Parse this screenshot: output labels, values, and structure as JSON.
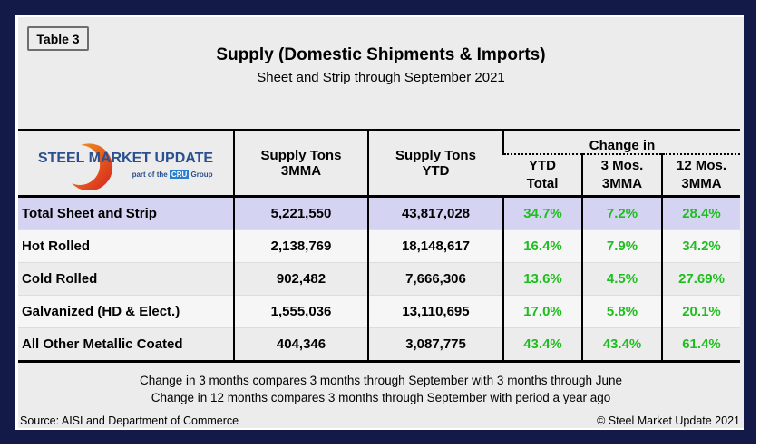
{
  "table_tag": "Table 3",
  "title": "Supply (Domestic Shipments & Imports)",
  "subtitle": "Sheet and Strip through September 2021",
  "logo": {
    "text": "STEEL MARKET UPDATE",
    "sub": "part of the",
    "group": "Group",
    "mark": "CRU"
  },
  "headers": {
    "col1": [
      "Supply Tons",
      "3MMA"
    ],
    "col2": [
      "Supply Tons",
      "YTD"
    ],
    "change": "Change in",
    "c3": [
      "YTD",
      "Total"
    ],
    "c4": [
      "3 Mos.",
      "3MMA"
    ],
    "c5": [
      "12 Mos.",
      "3MMA"
    ]
  },
  "rows": [
    {
      "label": "Total Sheet and Strip",
      "tons_3mma": "5,221,550",
      "tons_ytd": "43,817,028",
      "ytd": "34.7%",
      "m3": "7.2%",
      "m12": "28.4%"
    },
    {
      "label": "Hot Rolled",
      "tons_3mma": "2,138,769",
      "tons_ytd": "18,148,617",
      "ytd": "16.4%",
      "m3": "7.9%",
      "m12": "34.2%"
    },
    {
      "label": "Cold Rolled",
      "tons_3mma": "902,482",
      "tons_ytd": "7,666,306",
      "ytd": "13.6%",
      "m3": "4.5%",
      "m12": "27.69%"
    },
    {
      "label": "Galvanized (HD & Elect.)",
      "tons_3mma": "1,555,036",
      "tons_ytd": "13,110,695",
      "ytd": "17.0%",
      "m3": "5.8%",
      "m12": "20.1%"
    },
    {
      "label": "All Other Metallic Coated",
      "tons_3mma": "404,346",
      "tons_ytd": "3,087,775",
      "ytd": "43.4%",
      "m3": "43.4%",
      "m12": "61.4%"
    }
  ],
  "notes": [
    "Change in 3 months compares 3 months through September with 3 months through June",
    "Change in 12 months compares 3 months through September with period a year ago"
  ],
  "source": "Source: AISI and Department of Commerce",
  "copyright": "© Steel Market Update 2021",
  "colors": {
    "frame": "#141a48",
    "highlight_row": "#d4d4f2",
    "positive": "#1fbe1f"
  }
}
